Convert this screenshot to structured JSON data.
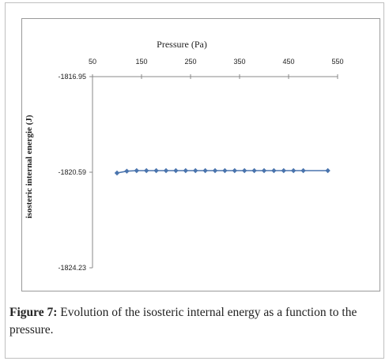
{
  "figure": {
    "label": "Figure 7:",
    "caption": "Evolution of the isosteric internal energy as a function to the pressure."
  },
  "colors": {
    "series": "#4a74ad",
    "axis": "#888888",
    "text": "#222222"
  },
  "chart_data": {
    "type": "line",
    "title": "",
    "xlabel": "Pressure (Pa)",
    "ylabel": "isosteric internal energie (J)",
    "xlim": [
      50,
      550
    ],
    "ylim": [
      -1824.23,
      -1816.95
    ],
    "x_axis_position": "top",
    "xticks": [
      "50",
      "150",
      "250",
      "350",
      "450",
      "550"
    ],
    "yticks": [
      "-1816.95",
      "-1820.59",
      "-1824.23"
    ],
    "grid": false,
    "legend": "none",
    "series": [
      {
        "marker": "diamond",
        "x": [
          100,
          120,
          140,
          160,
          180,
          200,
          220,
          240,
          260,
          280,
          300,
          320,
          340,
          360,
          380,
          400,
          420,
          440,
          460,
          480,
          530
        ],
        "y": [
          -1820.62,
          -1820.55,
          -1820.53,
          -1820.53,
          -1820.53,
          -1820.53,
          -1820.53,
          -1820.53,
          -1820.53,
          -1820.53,
          -1820.53,
          -1820.53,
          -1820.53,
          -1820.53,
          -1820.53,
          -1820.53,
          -1820.53,
          -1820.53,
          -1820.53,
          -1820.53,
          -1820.53
        ]
      }
    ]
  }
}
